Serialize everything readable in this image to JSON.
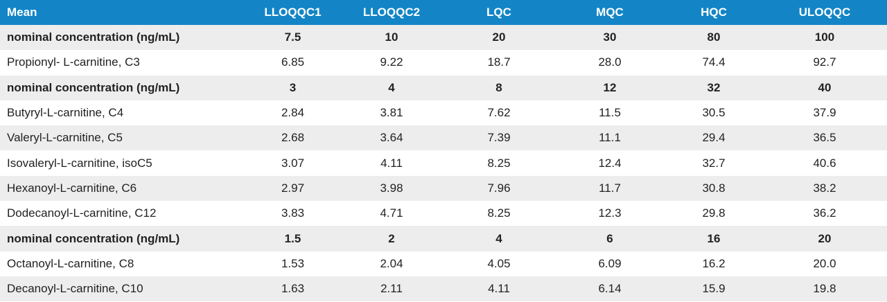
{
  "table": {
    "header": [
      "Mean",
      "LLOQQC1",
      "LLOQQC2",
      "LQC",
      "MQC",
      "HQC",
      "ULOQQC"
    ],
    "rows": [
      {
        "bold": true,
        "cells": [
          "nominal concentration (ng/mL)",
          "7.5",
          "10",
          "20",
          "30",
          "80",
          "100"
        ]
      },
      {
        "bold": false,
        "cells": [
          "Propionyl- L-carnitine, C3",
          "6.85",
          "9.22",
          "18.7",
          "28.0",
          "74.4",
          "92.7"
        ]
      },
      {
        "bold": true,
        "cells": [
          "nominal concentration (ng/mL)",
          "3",
          "4",
          "8",
          "12",
          "32",
          "40"
        ]
      },
      {
        "bold": false,
        "cells": [
          "Butyryl-L-carnitine, C4",
          "2.84",
          "3.81",
          "7.62",
          "11.5",
          "30.5",
          "37.9"
        ]
      },
      {
        "bold": false,
        "cells": [
          "Valeryl-L-carnitine, C5",
          "2.68",
          "3.64",
          "7.39",
          "11.1",
          "29.4",
          "36.5"
        ]
      },
      {
        "bold": false,
        "cells": [
          "Isovaleryl-L-carnitine, isoC5",
          "3.07",
          "4.11",
          "8.25",
          "12.4",
          "32.7",
          "40.6"
        ]
      },
      {
        "bold": false,
        "cells": [
          "Hexanoyl-L-carnitine, C6",
          "2.97",
          "3.98",
          "7.96",
          "11.7",
          "30.8",
          "38.2"
        ]
      },
      {
        "bold": false,
        "cells": [
          "Dodecanoyl-L-carnitine, C12",
          "3.83",
          "4.71",
          "8.25",
          "12.3",
          "29.8",
          "36.2"
        ]
      },
      {
        "bold": true,
        "cells": [
          "nominal concentration (ng/mL)",
          "1.5",
          "2",
          "4",
          "6",
          "16",
          "20"
        ]
      },
      {
        "bold": false,
        "cells": [
          "Octanoyl-L-carnitine, C8",
          "1.53",
          "2.04",
          "4.05",
          "6.09",
          "16.2",
          "20.0"
        ]
      },
      {
        "bold": false,
        "cells": [
          "Decanoyl-L-carnitine, C10",
          "1.63",
          "2.11",
          "4.11",
          "6.14",
          "15.9",
          "19.8"
        ]
      }
    ]
  }
}
